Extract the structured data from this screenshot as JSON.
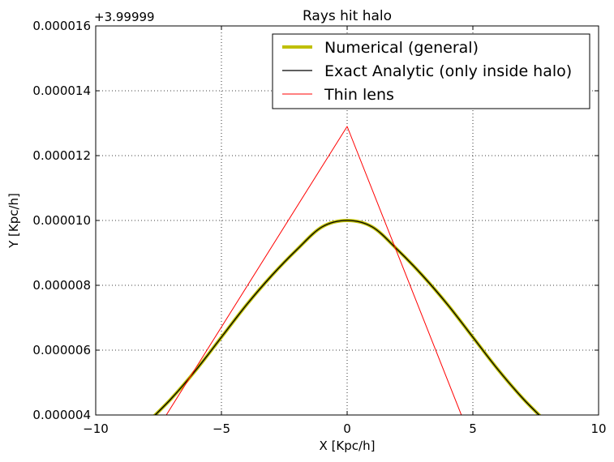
{
  "chart_data": {
    "type": "line",
    "title": "Rays hit halo",
    "xlabel": "X [Kpc/h]",
    "ylabel": "Y [Kpc/h]",
    "offset_label": "+3.99999",
    "xlim": [
      -10,
      10
    ],
    "ylim": [
      4e-06,
      1.6e-05
    ],
    "xticks": [
      -10,
      -5,
      0,
      5,
      10
    ],
    "xtick_labels": [
      "−10",
      "−5",
      "0",
      "5",
      "10"
    ],
    "yticks": [
      4e-06,
      6e-06,
      8e-06,
      1e-05,
      1.2e-05,
      1.4e-05,
      1.6e-05
    ],
    "ytick_labels": [
      "0.000004",
      "0.000006",
      "0.000008",
      "0.000010",
      "0.000012",
      "0.000014",
      "0.000016"
    ],
    "grid": true,
    "legend_position": "top-right",
    "series": [
      {
        "name": "Numerical (general)",
        "color": "#bfbf00",
        "x": [
          -7.9,
          -7,
          -6,
          -5,
          -4,
          -3,
          -2,
          -1,
          0,
          1,
          2,
          3,
          4,
          5,
          6,
          7,
          7.9
        ],
        "y": [
          3.8e-06,
          4.5e-06,
          5.4e-06,
          6.4e-06,
          7.4e-06,
          8.3e-06,
          9.1e-06,
          9.8e-06,
          1e-05,
          9.8e-06,
          9.1e-06,
          8.3e-06,
          7.4e-06,
          6.4e-06,
          5.4e-06,
          4.5e-06,
          3.8e-06
        ]
      },
      {
        "name": "Exact Analytic (only inside halo)",
        "color": "#000000",
        "x": [
          -7.9,
          -7,
          -6,
          -5,
          -4,
          -3,
          -2,
          -1,
          0,
          1,
          2,
          3,
          4,
          5,
          6,
          7,
          7.9
        ],
        "y": [
          3.8e-06,
          4.5e-06,
          5.4e-06,
          6.4e-06,
          7.4e-06,
          8.3e-06,
          9.1e-06,
          9.8e-06,
          1e-05,
          9.8e-06,
          9.1e-06,
          8.3e-06,
          7.4e-06,
          6.4e-06,
          5.4e-06,
          4.5e-06,
          3.8e-06
        ]
      },
      {
        "name": "Thin lens",
        "color": "#ff0000",
        "x": [
          -8,
          0,
          4.9
        ],
        "y": [
          3e-06,
          1.29e-05,
          3.3e-06
        ]
      }
    ]
  }
}
